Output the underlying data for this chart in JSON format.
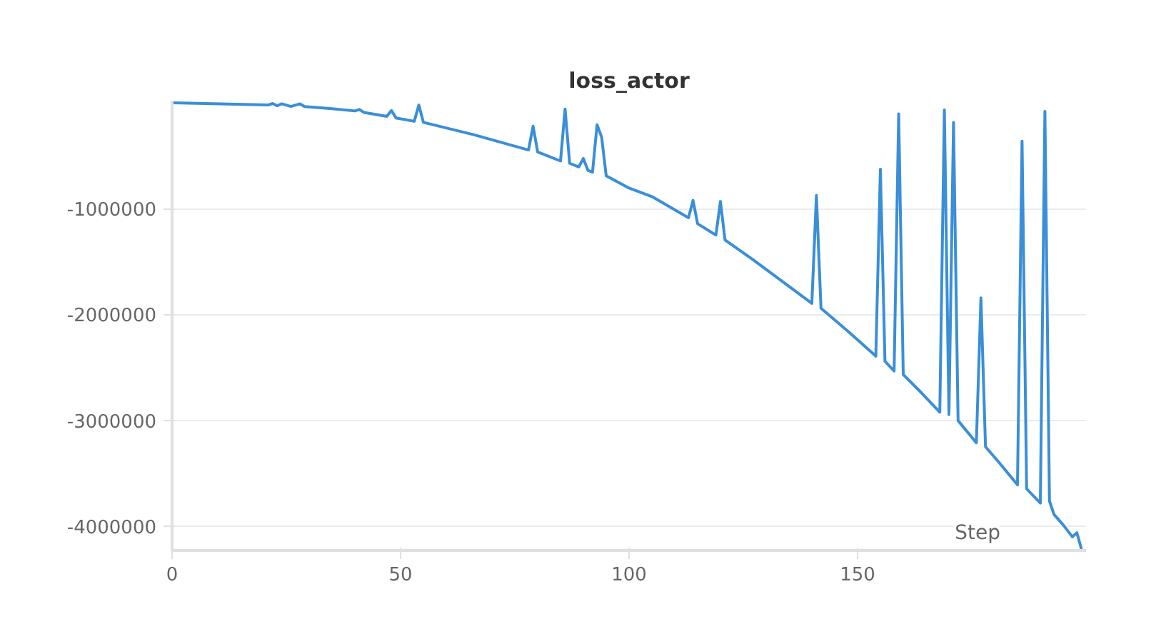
{
  "chart_data": {
    "type": "line",
    "title": "loss_actor",
    "xlabel": "Step",
    "x": [
      0,
      21,
      22,
      23,
      24,
      26,
      28,
      29,
      35,
      40,
      41,
      42,
      47,
      48,
      49,
      53,
      54,
      55,
      66,
      78,
      79,
      80,
      85,
      86,
      87,
      89,
      90,
      91,
      92,
      93,
      94,
      95,
      100,
      105,
      113,
      114,
      115,
      119,
      120,
      121,
      127,
      133,
      140,
      141,
      142,
      148,
      154,
      155,
      156,
      158,
      159,
      160,
      164,
      168,
      169,
      170,
      171,
      172,
      176,
      177,
      178,
      181,
      185,
      186,
      187,
      190,
      191,
      192,
      193,
      195,
      197,
      198,
      199
    ],
    "series": [
      {
        "color": "#3b8ed8",
        "values": [
          0,
          -21000,
          -7000,
          -28000,
          -10000,
          -35000,
          -10000,
          -35000,
          -56000,
          -77000,
          -63000,
          -91000,
          -129000,
          -73000,
          -143000,
          -175000,
          -21000,
          -185000,
          -301000,
          -446000,
          -221000,
          -465000,
          -550000,
          -59000,
          -572000,
          -606000,
          -526000,
          -638000,
          -656000,
          -207000,
          -325000,
          -690000,
          -806000,
          -886000,
          -1086000,
          -922000,
          -1143000,
          -1250000,
          -932000,
          -1297000,
          -1479000,
          -1671000,
          -1895000,
          -876000,
          -1942000,
          -2162000,
          -2394000,
          -628000,
          -2442000,
          -2535000,
          -105000,
          -2568000,
          -2741000,
          -2923000,
          -67000,
          -2947000,
          -185000,
          -3003000,
          -3213000,
          -1843000,
          -3250000,
          -3400000,
          -3610000,
          -362000,
          -3648000,
          -3782000,
          -81000,
          -3764000,
          -3890000,
          -3988000,
          -4101000,
          -4063000,
          -4217000
        ]
      }
    ],
    "xlim": [
      0,
      200
    ],
    "ylim": [
      -4230000,
      20000
    ],
    "xticks": [
      0,
      50,
      100,
      150
    ],
    "yticks": [
      -1000000,
      -2000000,
      -3000000,
      -4000000
    ],
    "grid": "y",
    "marker": "none",
    "line_style": "solid"
  }
}
